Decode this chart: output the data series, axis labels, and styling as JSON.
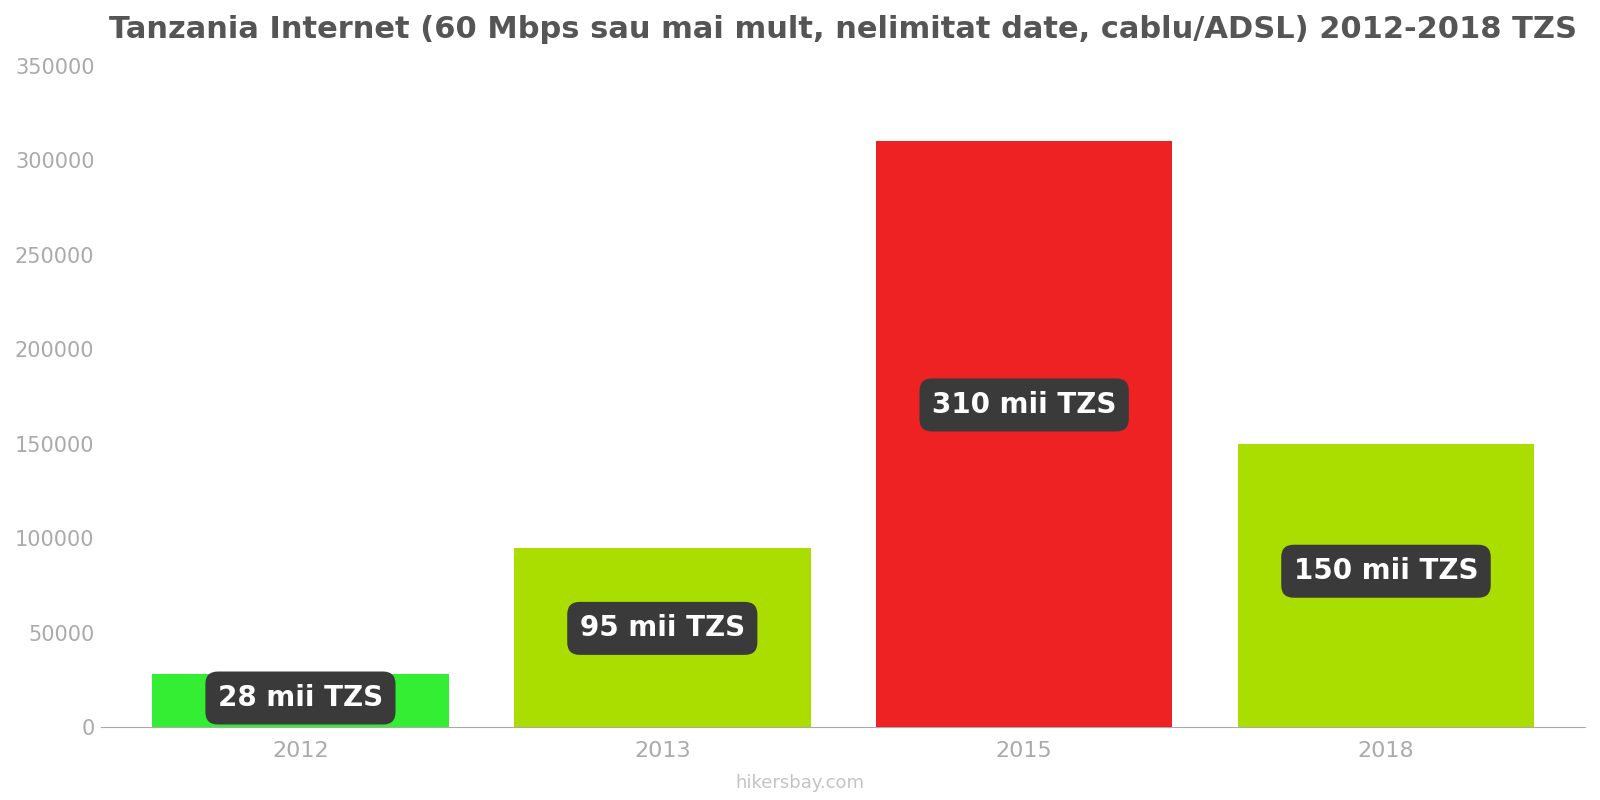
{
  "categories": [
    "2012",
    "2013",
    "2015",
    "2018"
  ],
  "values": [
    28000,
    95000,
    310000,
    150000
  ],
  "bar_colors": [
    "#33ee33",
    "#aadd00",
    "#ee2222",
    "#aadd00"
  ],
  "labels": [
    "28 mii TZS",
    "95 mii TZS",
    "310 mii TZS",
    "150 mii TZS"
  ],
  "title": "Tanzania Internet (60 Mbps sau mai mult, nelimitat date, cablu/ADSL) 2012-2018 TZS",
  "ylim": [
    0,
    350000
  ],
  "yticks": [
    0,
    50000,
    100000,
    150000,
    200000,
    250000,
    300000,
    350000
  ],
  "watermark": "hikersbay.com",
  "label_bg_color": "#3a3a3a",
  "label_text_color": "#ffffff",
  "title_color": "#555555",
  "tick_color": "#aaaaaa",
  "background_color": "#ffffff",
  "bar_width": 0.82,
  "label_fontsize": 20,
  "title_fontsize": 22,
  "tick_fontsize": 15
}
